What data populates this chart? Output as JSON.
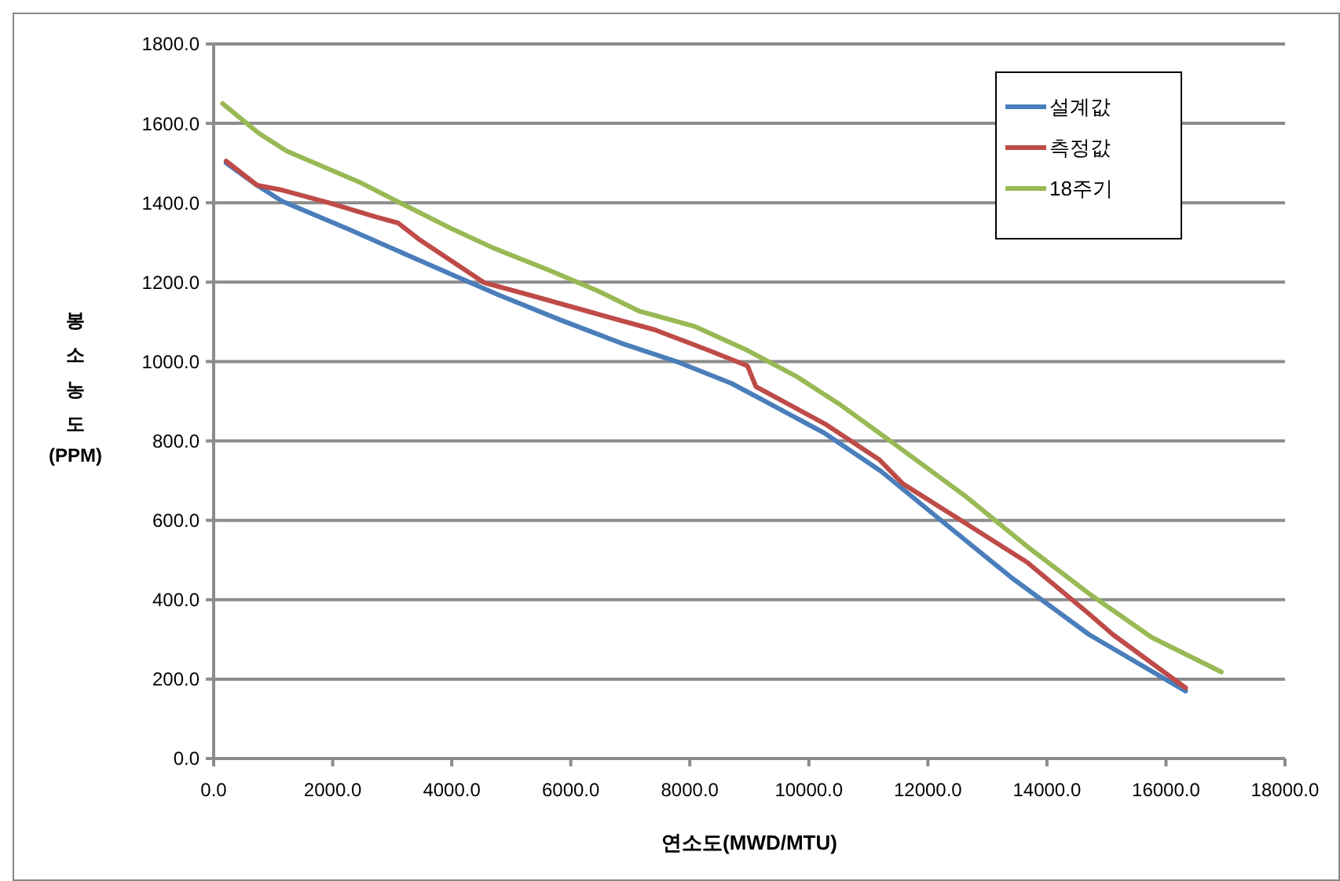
{
  "chart_data": {
    "type": "line",
    "xlabel": "연소도(MWD/MTU)",
    "ylabel": "봉소농도(PPM)",
    "xlim": [
      0,
      18000
    ],
    "ylim": [
      0,
      1800
    ],
    "xticks": [
      {
        "value": 0,
        "label": "0.0"
      },
      {
        "value": 2000,
        "label": "2000.0"
      },
      {
        "value": 4000,
        "label": "4000.0"
      },
      {
        "value": 6000,
        "label": "6000.0"
      },
      {
        "value": 8000,
        "label": "8000.0"
      },
      {
        "value": 10000,
        "label": "10000.0"
      },
      {
        "value": 12000,
        "label": "12000.0"
      },
      {
        "value": 14000,
        "label": "14000.0"
      },
      {
        "value": 16000,
        "label": "16000.0"
      },
      {
        "value": 18000,
        "label": "18000.0"
      }
    ],
    "yticks": [
      {
        "value": 0,
        "label": "0.0"
      },
      {
        "value": 200,
        "label": "200.0"
      },
      {
        "value": 400,
        "label": "400.0"
      },
      {
        "value": 600,
        "label": "600.0"
      },
      {
        "value": 800,
        "label": "800.0"
      },
      {
        "value": 1000,
        "label": "1000.0"
      },
      {
        "value": 1200,
        "label": "1200.0"
      },
      {
        "value": 1400,
        "label": "1400.0"
      },
      {
        "value": 1600,
        "label": "1600.0"
      },
      {
        "value": 1800,
        "label": "1800.0"
      }
    ],
    "grid": "y",
    "legend": "top right",
    "marker": "none",
    "line_style": "solid",
    "series": [
      {
        "name": "설계값",
        "color": "#4a7ebb",
        "x": [
          210,
          730,
          1150,
          2270,
          3290,
          4020,
          4800,
          5840,
          6890,
          7830,
          8700,
          9490,
          10270,
          11210,
          12310,
          13410,
          14710,
          16330
        ],
        "values": [
          1500,
          1444,
          1404,
          1333,
          1266,
          1218,
          1167,
          1104,
          1044,
          997,
          945,
          882,
          819,
          724,
          589,
          455,
          312,
          170
        ]
      },
      {
        "name": "측정값",
        "color": "#be4b48",
        "x": [
          210,
          730,
          1150,
          1930,
          2710,
          3100,
          3440,
          4070,
          4540,
          5320,
          6370,
          7410,
          8320,
          8970,
          9110,
          9490,
          10270,
          11190,
          11580,
          12630,
          13670,
          14710,
          15110,
          16330
        ],
        "values": [
          1505,
          1444,
          1432,
          1400,
          1365,
          1349,
          1309,
          1246,
          1199,
          1167,
          1123,
          1080,
          1028,
          989,
          937,
          906,
          843,
          752,
          692,
          593,
          494,
          364,
          312,
          178
        ]
      },
      {
        "name": "18주기",
        "color": "#98b954",
        "x": [
          150,
          760,
          1230,
          2450,
          3290,
          4020,
          4700,
          5640,
          6440,
          7150,
          8090,
          8970,
          9810,
          10540,
          11450,
          12630,
          13670,
          14710,
          15760,
          16930
        ],
        "values": [
          1650,
          1575,
          1530,
          1452,
          1388,
          1333,
          1286,
          1230,
          1179,
          1127,
          1088,
          1028,
          961,
          890,
          791,
          661,
          534,
          415,
          305,
          218
        ]
      }
    ]
  }
}
